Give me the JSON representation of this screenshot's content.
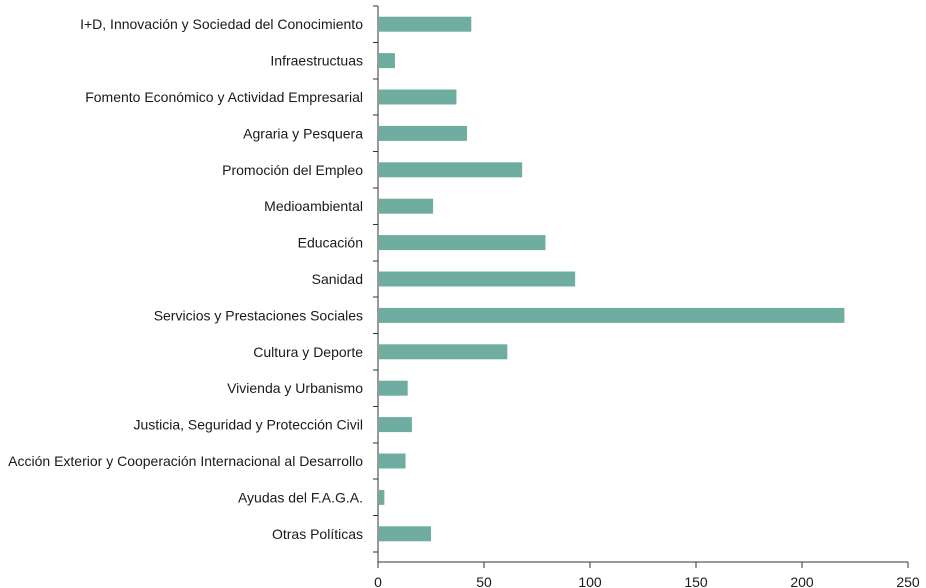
{
  "chart_data": {
    "type": "bar",
    "orientation": "horizontal",
    "title": "",
    "xlabel": "",
    "ylabel": "",
    "categories": [
      "I+D, Innovación y Sociedad del Conocimiento",
      "Infraestructuas",
      "Fomento Económico y Actividad Empresarial",
      "Agraria y Pesquera",
      "Promoción del Empleo",
      "Medioambiental",
      "Educación",
      "Sanidad",
      "Servicios y Prestaciones Sociales",
      "Cultura y Deporte",
      "Vivienda y Urbanismo",
      "Justicia, Seguridad y Protección Civil",
      "Acción Exterior y Cooperación Internacional al Desarrollo",
      "Ayudas del F.A.G.A.",
      "Otras Políticas"
    ],
    "values": [
      44,
      8,
      37,
      42,
      68,
      26,
      79,
      93,
      220,
      61,
      14,
      16,
      13,
      3,
      25
    ],
    "xlim": [
      0,
      250
    ],
    "xticks": [
      0,
      50,
      100,
      150,
      200,
      250
    ],
    "bar_color": "#6fada0",
    "axis_color": "#333333",
    "text_color": "#1a1a1a",
    "grid": false,
    "legend": "none"
  }
}
